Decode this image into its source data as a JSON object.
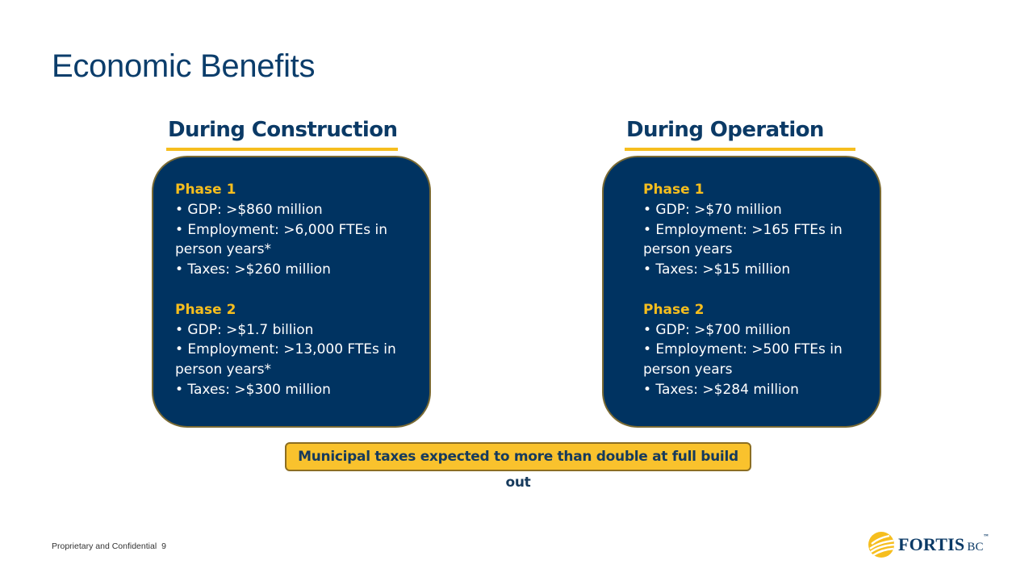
{
  "title": "Economic Benefits",
  "columns": [
    {
      "heading": "During Construction",
      "phases": [
        {
          "label": "Phase 1",
          "bullets": [
            "• GDP: >$860 million",
            "• Employment: >6,000 FTEs in",
            "person years*",
            "• Taxes: >$260 million"
          ]
        },
        {
          "label": "Phase 2",
          "bullets": [
            "• GDP: >$1.7 billion",
            "• Employment: >13,000 FTEs in",
            "person years*",
            "• Taxes: >$300 million"
          ]
        }
      ]
    },
    {
      "heading": "During Operation",
      "phases": [
        {
          "label": "Phase 1",
          "bullets": [
            "• GDP: >$70 million",
            "• Employment: >165 FTEs in",
            "person years",
            "• Taxes: >$15 million"
          ]
        },
        {
          "label": "Phase 2",
          "bullets": [
            "• GDP: >$700 million",
            "• Employment: >500 FTEs in",
            "person years",
            "• Taxes: >$284 million"
          ]
        }
      ]
    }
  ],
  "callout": "Municipal taxes expected to more than double at full build out",
  "footer": {
    "text": "Proprietary and Confidential",
    "page": "9"
  },
  "logo": {
    "name": "FORTIS",
    "suffix": "BC",
    "mark": "™",
    "icon": "fortis-sun-icon",
    "colors": {
      "brand_navy": "#0b3a66",
      "brand_gold": "#f6be1e"
    }
  },
  "colors": {
    "title": "#0b3d6b",
    "card_bg": "#003361",
    "accent": "#f6be1e",
    "callout_bg": "#f9c22d"
  }
}
